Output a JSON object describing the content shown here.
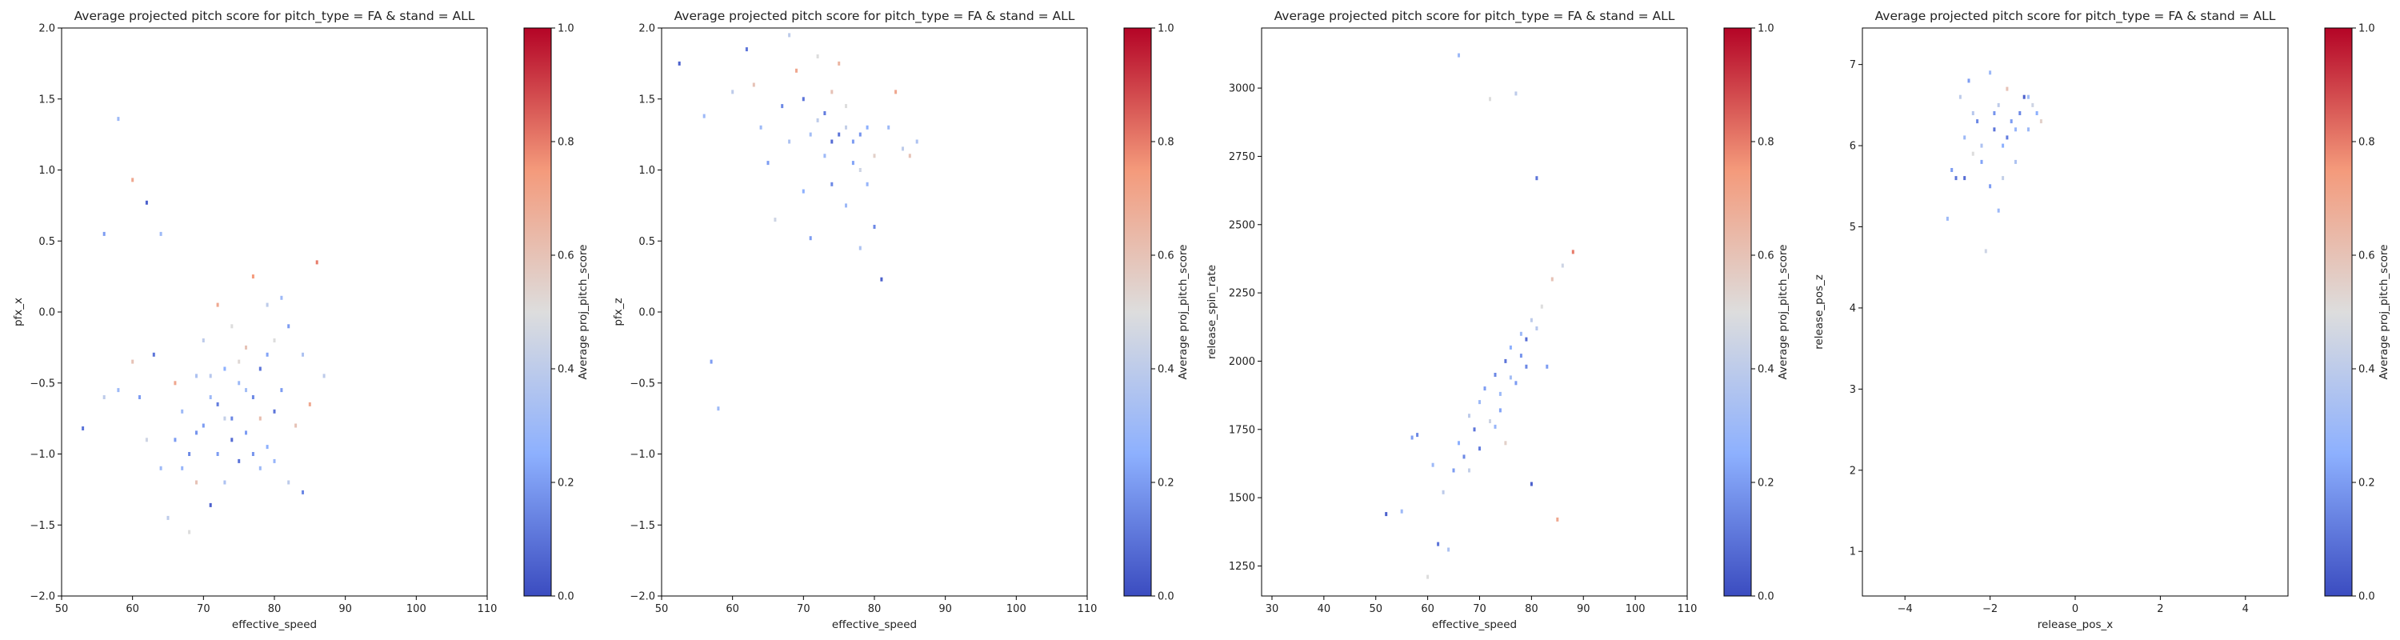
{
  "chart_data": [
    {
      "type": "heatmap",
      "title": "Average projected pitch score for pitch_type = FA & stand = ALL",
      "xlabel": "effective_speed",
      "ylabel": "pfx_x",
      "xlim": [
        50,
        110
      ],
      "ylim": [
        -2.0,
        2.0
      ],
      "xticks": [
        50,
        60,
        70,
        80,
        90,
        100,
        110
      ],
      "yticks": [
        -2.0,
        -1.5,
        -1.0,
        -0.5,
        0.0,
        0.5,
        1.0,
        1.5,
        2.0
      ],
      "colorbar": {
        "label": "Average proj_pitch_score",
        "range": [
          0.0,
          1.0
        ],
        "ticks": [
          0.0,
          0.2,
          0.4,
          0.6,
          0.8,
          1.0
        ],
        "colormap": "coolwarm"
      },
      "points": [
        [
          53,
          -0.82,
          0.1
        ],
        [
          56,
          0.55,
          0.2
        ],
        [
          58,
          1.36,
          0.3
        ],
        [
          60,
          0.93,
          0.7
        ],
        [
          62,
          0.77,
          0.05
        ],
        [
          64,
          0.55,
          0.3
        ],
        [
          56,
          -0.6,
          0.4
        ],
        [
          58,
          -0.55,
          0.3
        ],
        [
          60,
          -0.35,
          0.6
        ],
        [
          61,
          -0.6,
          0.2
        ],
        [
          62,
          -0.9,
          0.45
        ],
        [
          63,
          -0.3,
          0.1
        ],
        [
          64,
          -1.1,
          0.3
        ],
        [
          65,
          -1.45,
          0.4
        ],
        [
          66,
          -0.9,
          0.2
        ],
        [
          66,
          -0.5,
          0.7
        ],
        [
          67,
          -0.7,
          0.3
        ],
        [
          68,
          -1.55,
          0.5
        ],
        [
          68,
          -1.0,
          0.15
        ],
        [
          69,
          -0.45,
          0.35
        ],
        [
          69,
          -1.2,
          0.6
        ],
        [
          70,
          -0.8,
          0.2
        ],
        [
          70,
          -0.2,
          0.4
        ],
        [
          71,
          -1.36,
          0.05
        ],
        [
          71,
          -0.6,
          0.3
        ],
        [
          72,
          -1.0,
          0.2
        ],
        [
          72,
          0.05,
          0.7
        ],
        [
          73,
          -0.4,
          0.25
        ],
        [
          73,
          -1.2,
          0.35
        ],
        [
          74,
          -0.75,
          0.15
        ],
        [
          74,
          -0.1,
          0.5
        ],
        [
          75,
          -0.5,
          0.3
        ],
        [
          75,
          -1.05,
          0.1
        ],
        [
          76,
          -0.85,
          0.2
        ],
        [
          76,
          -0.25,
          0.6
        ],
        [
          77,
          0.25,
          0.75
        ],
        [
          77,
          -0.6,
          0.15
        ],
        [
          78,
          -1.1,
          0.3
        ],
        [
          78,
          -0.4,
          0.1
        ],
        [
          79,
          0.05,
          0.4
        ],
        [
          79,
          -0.95,
          0.25
        ],
        [
          80,
          -0.7,
          0.1
        ],
        [
          80,
          -0.2,
          0.5
        ],
        [
          81,
          0.1,
          0.3
        ],
        [
          81,
          -0.55,
          0.2
        ],
        [
          82,
          -1.2,
          0.4
        ],
        [
          83,
          -0.8,
          0.6
        ],
        [
          84,
          -1.27,
          0.15
        ],
        [
          84,
          -0.3,
          0.35
        ],
        [
          85,
          -0.65,
          0.7
        ],
        [
          86,
          0.35,
          0.8
        ],
        [
          87,
          -0.45,
          0.4
        ],
        [
          74,
          -0.9,
          0.08
        ],
        [
          72,
          -0.65,
          0.12
        ],
        [
          77,
          -1.0,
          0.18
        ],
        [
          79,
          -0.3,
          0.22
        ],
        [
          80,
          -1.05,
          0.28
        ],
        [
          76,
          -0.55,
          0.32
        ],
        [
          73,
          -0.75,
          0.42
        ],
        [
          75,
          -0.35,
          0.52
        ],
        [
          78,
          -0.75,
          0.62
        ],
        [
          71,
          -0.45,
          0.38
        ],
        [
          69,
          -0.85,
          0.18
        ],
        [
          67,
          -1.1,
          0.28
        ],
        [
          82,
          -0.1,
          0.2
        ]
      ]
    },
    {
      "type": "heatmap",
      "title": "Average projected pitch score for pitch_type = FA & stand = ALL",
      "xlabel": "effective_speed",
      "ylabel": "pfx_z",
      "xlim": [
        50,
        110
      ],
      "ylim": [
        -2.0,
        2.0
      ],
      "xticks": [
        50,
        60,
        70,
        80,
        90,
        100,
        110
      ],
      "yticks": [
        -2.0,
        -1.5,
        -1.0,
        -0.5,
        0.0,
        0.5,
        1.0,
        1.5,
        2.0
      ],
      "colorbar": {
        "label": "Average proj_pitch_score",
        "range": [
          0.0,
          1.0
        ],
        "ticks": [
          0.0,
          0.2,
          0.4,
          0.6,
          0.8,
          1.0
        ],
        "colormap": "coolwarm"
      },
      "points": [
        [
          52.5,
          1.75,
          0.05
        ],
        [
          56,
          1.38,
          0.3
        ],
        [
          57,
          -0.35,
          0.2
        ],
        [
          58,
          -0.68,
          0.3
        ],
        [
          60,
          1.55,
          0.4
        ],
        [
          62,
          1.85,
          0.1
        ],
        [
          63,
          1.6,
          0.6
        ],
        [
          64,
          1.3,
          0.3
        ],
        [
          65,
          1.05,
          0.2
        ],
        [
          66,
          0.65,
          0.45
        ],
        [
          67,
          1.45,
          0.15
        ],
        [
          68,
          1.2,
          0.35
        ],
        [
          69,
          1.7,
          0.7
        ],
        [
          70,
          0.85,
          0.25
        ],
        [
          70,
          1.5,
          0.1
        ],
        [
          71,
          0.52,
          0.2
        ],
        [
          72,
          1.35,
          0.4
        ],
        [
          73,
          1.1,
          0.3
        ],
        [
          74,
          1.55,
          0.6
        ],
        [
          74,
          0.9,
          0.15
        ],
        [
          75,
          1.25,
          0.1
        ],
        [
          76,
          1.45,
          0.5
        ],
        [
          76,
          0.75,
          0.3
        ],
        [
          77,
          1.2,
          0.2
        ],
        [
          78,
          1.0,
          0.45
        ],
        [
          78,
          0.45,
          0.35
        ],
        [
          79,
          1.3,
          0.25
        ],
        [
          80,
          0.6,
          0.15
        ],
        [
          80,
          1.1,
          0.55
        ],
        [
          81,
          0.23,
          0.05
        ],
        [
          82,
          1.3,
          0.3
        ],
        [
          83,
          1.55,
          0.7
        ],
        [
          84,
          1.15,
          0.4
        ],
        [
          85,
          1.1,
          0.6
        ],
        [
          86,
          1.2,
          0.35
        ],
        [
          72,
          1.8,
          0.5
        ],
        [
          75,
          1.75,
          0.65
        ],
        [
          68,
          1.95,
          0.4
        ],
        [
          73,
          1.4,
          0.12
        ],
        [
          77,
          1.05,
          0.22
        ],
        [
          71,
          1.25,
          0.32
        ],
        [
          74,
          1.2,
          0.08
        ],
        [
          79,
          0.9,
          0.28
        ],
        [
          76,
          1.3,
          0.42
        ],
        [
          78,
          1.25,
          0.18
        ]
      ]
    },
    {
      "type": "heatmap",
      "title": "Average projected pitch score for pitch_type = FA & stand = ALL",
      "xlabel": "effective_speed",
      "ylabel": "release_spin_rate",
      "xlim": [
        28,
        110
      ],
      "ylim": [
        1140,
        3220
      ],
      "xticks": [
        30,
        40,
        50,
        60,
        70,
        80,
        90,
        100,
        110
      ],
      "yticks": [
        1250,
        1500,
        1750,
        2000,
        2250,
        2500,
        2750,
        3000
      ],
      "colorbar": {
        "label": "Average proj_pitch_score",
        "range": [
          0.0,
          1.0
        ],
        "ticks": [
          0.0,
          0.2,
          0.4,
          0.6,
          0.8,
          1.0
        ],
        "colormap": "coolwarm"
      },
      "points": [
        [
          52,
          1440,
          0.05
        ],
        [
          55,
          1450,
          0.3
        ],
        [
          57,
          1720,
          0.2
        ],
        [
          58,
          1730,
          0.15
        ],
        [
          60,
          1210,
          0.5
        ],
        [
          61,
          1620,
          0.3
        ],
        [
          62,
          1330,
          0.1
        ],
        [
          63,
          1520,
          0.4
        ],
        [
          64,
          1310,
          0.35
        ],
        [
          65,
          1600,
          0.2
        ],
        [
          66,
          3120,
          0.3
        ],
        [
          66,
          1700,
          0.25
        ],
        [
          67,
          1650,
          0.15
        ],
        [
          68,
          1800,
          0.4
        ],
        [
          69,
          1750,
          0.1
        ],
        [
          70,
          1850,
          0.3
        ],
        [
          71,
          1900,
          0.2
        ],
        [
          72,
          1780,
          0.45
        ],
        [
          72,
          2960,
          0.5
        ],
        [
          73,
          1950,
          0.15
        ],
        [
          74,
          1880,
          0.3
        ],
        [
          75,
          2000,
          0.1
        ],
        [
          75,
          1700,
          0.55
        ],
        [
          76,
          2050,
          0.25
        ],
        [
          77,
          1920,
          0.2
        ],
        [
          77,
          2980,
          0.4
        ],
        [
          78,
          2100,
          0.3
        ],
        [
          79,
          1980,
          0.15
        ],
        [
          80,
          2150,
          0.4
        ],
        [
          80,
          1550,
          0.05
        ],
        [
          81,
          2670,
          0.1
        ],
        [
          82,
          2200,
          0.5
        ],
        [
          83,
          1980,
          0.2
        ],
        [
          84,
          2300,
          0.6
        ],
        [
          85,
          1420,
          0.7
        ],
        [
          86,
          2350,
          0.45
        ],
        [
          88,
          2400,
          0.8
        ],
        [
          70,
          1680,
          0.12
        ],
        [
          74,
          1820,
          0.22
        ],
        [
          78,
          2020,
          0.18
        ],
        [
          76,
          1940,
          0.32
        ],
        [
          73,
          1760,
          0.28
        ],
        [
          79,
          2080,
          0.08
        ],
        [
          81,
          2120,
          0.38
        ],
        [
          68,
          1600,
          0.42
        ]
      ]
    },
    {
      "type": "heatmap",
      "title": "Average projected pitch score for pitch_type = FA & stand = ALL",
      "xlabel": "release_pos_x",
      "ylabel": "release_pos_z",
      "xlim": [
        -5,
        5
      ],
      "ylim": [
        0.45,
        7.45
      ],
      "xticks": [
        -4,
        -2,
        0,
        2,
        4
      ],
      "yticks": [
        1,
        2,
        3,
        4,
        5,
        6,
        7
      ],
      "colorbar": {
        "label": "Average proj_pitch_score",
        "range": [
          0.0,
          1.0
        ],
        "ticks": [
          0.0,
          0.2,
          0.4,
          0.6,
          0.8,
          1.0
        ],
        "colormap": "coolwarm"
      },
      "points": [
        [
          -3.0,
          5.1,
          0.3
        ],
        [
          -2.9,
          5.7,
          0.2
        ],
        [
          -2.8,
          5.6,
          0.1
        ],
        [
          -2.7,
          6.6,
          0.4
        ],
        [
          -2.6,
          6.1,
          0.3
        ],
        [
          -2.5,
          6.8,
          0.2
        ],
        [
          -2.4,
          5.9,
          0.5
        ],
        [
          -2.3,
          6.3,
          0.15
        ],
        [
          -2.2,
          6.0,
          0.35
        ],
        [
          -2.1,
          4.7,
          0.45
        ],
        [
          -2.0,
          6.9,
          0.3
        ],
        [
          -2.0,
          5.5,
          0.2
        ],
        [
          -1.9,
          6.2,
          0.1
        ],
        [
          -1.8,
          6.5,
          0.4
        ],
        [
          -1.8,
          5.2,
          0.3
        ],
        [
          -1.7,
          6.0,
          0.25
        ],
        [
          -1.6,
          6.7,
          0.6
        ],
        [
          -1.5,
          6.3,
          0.2
        ],
        [
          -1.4,
          5.8,
          0.35
        ],
        [
          -1.3,
          6.4,
          0.15
        ],
        [
          -1.2,
          6.6,
          0.05
        ],
        [
          -1.1,
          6.2,
          0.3
        ],
        [
          -1.0,
          6.5,
          0.45
        ],
        [
          -0.9,
          6.4,
          0.25
        ],
        [
          -0.8,
          6.3,
          0.55
        ],
        [
          -1.6,
          6.1,
          0.12
        ],
        [
          -2.2,
          5.8,
          0.22
        ],
        [
          -1.9,
          6.4,
          0.18
        ],
        [
          -1.4,
          6.2,
          0.28
        ],
        [
          -2.6,
          5.6,
          0.08
        ],
        [
          -1.1,
          6.6,
          0.32
        ],
        [
          -2.4,
          6.4,
          0.38
        ],
        [
          -1.7,
          5.6,
          0.42
        ]
      ]
    }
  ]
}
